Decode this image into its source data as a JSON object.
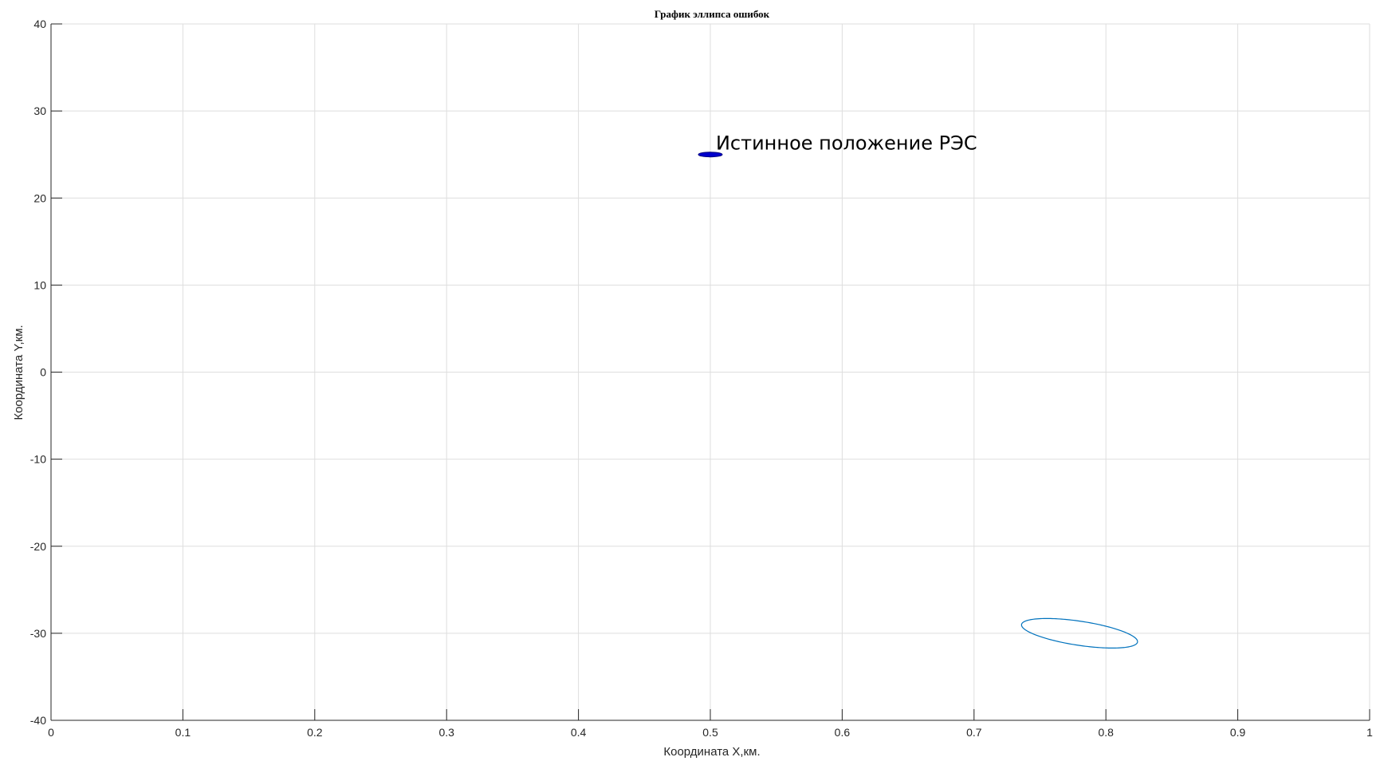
{
  "chart_data": {
    "type": "scatter",
    "title": "График эллипса ошибок",
    "xlabel": "Координата X,км.",
    "ylabel": "Координата Y,км.",
    "xlim": [
      0,
      1
    ],
    "ylim": [
      -40,
      40
    ],
    "grid": true,
    "xticks": [
      0,
      0.1,
      0.2,
      0.3,
      0.4,
      0.5,
      0.6,
      0.7,
      0.8,
      0.9,
      1
    ],
    "yticks": [
      -40,
      -30,
      -20,
      -10,
      0,
      10,
      20,
      30,
      40
    ],
    "xtick_labels": [
      "0",
      "0.1",
      "0.2",
      "0.3",
      "0.4",
      "0.5",
      "0.6",
      "0.7",
      "0.8",
      "0.9",
      "1"
    ],
    "ytick_labels": [
      "-40",
      "-30",
      "-20",
      "-10",
      "0",
      "10",
      "20",
      "30",
      "40"
    ],
    "true_position": {
      "x": 0.5,
      "y": 25,
      "color": "#0000cc"
    },
    "error_ellipse": {
      "cx": 0.78,
      "cy": -30.0,
      "rx": 0.044,
      "ry": 1.4,
      "tilt": 0.96,
      "color": "#0072bd"
    },
    "annotations": [
      {
        "text": "Истинное положение РЭС",
        "x": 0.503,
        "y": 26.3
      }
    ]
  }
}
